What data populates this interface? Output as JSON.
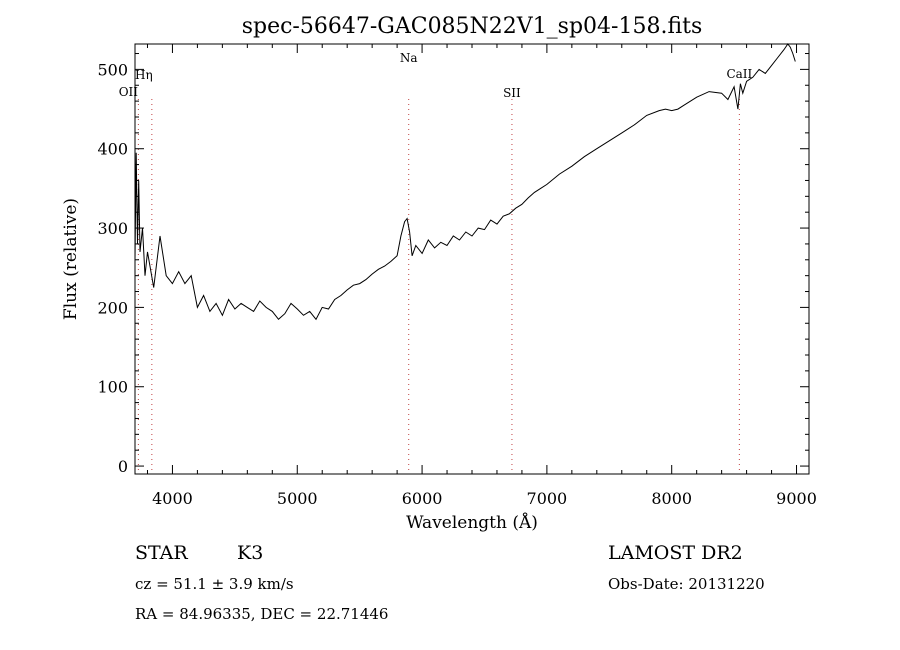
{
  "chart_data": {
    "type": "line",
    "title": "spec-56647-GAC085N22V1_sp04-158.fits",
    "xlabel": "Wavelength (Å)",
    "ylabel": "Flux (relative)",
    "xlim": [
      3700,
      9100
    ],
    "ylim": [
      -10,
      532
    ],
    "xticks": [
      4000,
      5000,
      6000,
      7000,
      8000,
      9000
    ],
    "yticks": [
      0,
      100,
      200,
      300,
      400,
      500
    ],
    "grid": false,
    "series": [
      {
        "x": [
          3700,
          3710,
          3720,
          3730,
          3740,
          3760,
          3780,
          3800,
          3850,
          3900,
          3950,
          4000,
          4050,
          4100,
          4150,
          4200,
          4250,
          4300,
          4350,
          4400,
          4450,
          4500,
          4550,
          4600,
          4650,
          4700,
          4750,
          4800,
          4850,
          4900,
          4950,
          5000,
          5050,
          5100,
          5150,
          5200,
          5250,
          5300,
          5350,
          5400,
          5450,
          5500,
          5550,
          5600,
          5650,
          5700,
          5750,
          5800,
          5830,
          5860,
          5880,
          5900,
          5920,
          5950,
          6000,
          6050,
          6100,
          6150,
          6200,
          6250,
          6300,
          6350,
          6400,
          6450,
          6500,
          6550,
          6600,
          6650,
          6700,
          6750,
          6800,
          6850,
          6900,
          6950,
          7000,
          7100,
          7200,
          7300,
          7400,
          7500,
          7600,
          7700,
          7800,
          7900,
          7950,
          8000,
          8050,
          8100,
          8200,
          8300,
          8400,
          8450,
          8500,
          8530,
          8550,
          8570,
          8600,
          8650,
          8700,
          8750,
          8800,
          8850,
          8900,
          8930,
          8950,
          8970,
          8990
        ],
        "y": [
          260,
          395,
          280,
          360,
          270,
          300,
          240,
          270,
          225,
          290,
          240,
          230,
          245,
          230,
          240,
          200,
          215,
          195,
          205,
          190,
          210,
          198,
          205,
          200,
          195,
          208,
          200,
          195,
          185,
          192,
          205,
          198,
          190,
          195,
          185,
          200,
          198,
          210,
          215,
          222,
          228,
          230,
          235,
          242,
          248,
          252,
          258,
          265,
          290,
          308,
          312,
          295,
          265,
          278,
          268,
          285,
          275,
          282,
          278,
          290,
          285,
          295,
          290,
          300,
          298,
          310,
          305,
          315,
          318,
          325,
          330,
          338,
          345,
          350,
          355,
          368,
          378,
          390,
          400,
          410,
          420,
          430,
          442,
          448,
          450,
          448,
          450,
          455,
          465,
          472,
          470,
          462,
          478,
          450,
          482,
          470,
          485,
          490,
          500,
          495,
          505,
          515,
          525,
          532,
          528,
          520,
          510
        ]
      }
    ],
    "annotations": [
      {
        "label": "OII",
        "x": 3727
      },
      {
        "label": "Hη",
        "x": 3835
      },
      {
        "label": "Na",
        "x": 5893
      },
      {
        "label": "SII",
        "x": 6720
      },
      {
        "label": "CaII",
        "x": 8542
      }
    ]
  },
  "info": {
    "object_class": "STAR",
    "subclass": "K3",
    "survey": "LAMOST DR2",
    "cz": "cz = 51.1 ± 3.9 km/s",
    "obs_date": "Obs-Date: 20131220",
    "coords": "RA =  84.96335, DEC =  22.71446"
  }
}
